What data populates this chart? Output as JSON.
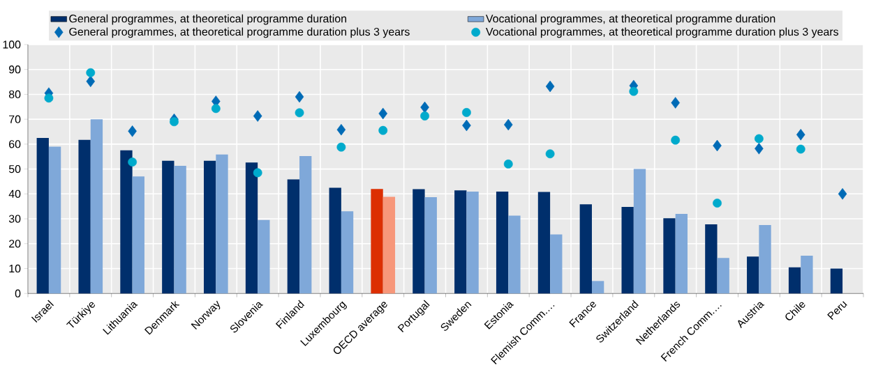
{
  "chart_data": {
    "type": "bar",
    "categories": [
      "Israel",
      "Türkiye",
      "Lithuania",
      "Denmark",
      "Norway",
      "Slovenia",
      "Finland",
      "Luxembourg",
      "OECD average",
      "Portugal",
      "Sweden",
      "Estonia",
      "Flemish Comm.…",
      "France",
      "Switzerland",
      "Netherlands",
      "French Comm.…",
      "Austria",
      "Chile",
      "Peru"
    ],
    "series": [
      {
        "name": "General programmes, at theoretical programme duration",
        "color": "#002f6c",
        "colors": [
          "#002f6c",
          "#002f6c",
          "#002f6c",
          "#002f6c",
          "#002f6c",
          "#002f6c",
          "#002f6c",
          "#002f6c",
          "#dc2f02",
          "#002f6c",
          "#002f6c",
          "#002f6c",
          "#002f6c",
          "#002f6c",
          "#002f6c",
          "#002f6c",
          "#002f6c",
          "#002f6c",
          "#002f6c",
          "#002f6c"
        ],
        "values": [
          62.5,
          61.7,
          57.5,
          53.3,
          53.3,
          52.6,
          45.8,
          42.5,
          42,
          41.9,
          41.4,
          40.9,
          40.8,
          35.8,
          34.8,
          30.2,
          27.8,
          14.8,
          10.5,
          10
        ]
      },
      {
        "name": "Vocational programmes, at theoretical programme duration",
        "color": "#7fa8d9",
        "colors": [
          "#7fa8d9",
          "#7fa8d9",
          "#7fa8d9",
          "#7fa8d9",
          "#7fa8d9",
          "#7fa8d9",
          "#7fa8d9",
          "#7fa8d9",
          "#f7977a",
          "#7fa8d9",
          "#7fa8d9",
          "#7fa8d9",
          "#7fa8d9",
          "#7fa8d9",
          "#7fa8d9",
          "#7fa8d9",
          "#7fa8d9",
          "#7fa8d9",
          "#7fa8d9",
          "#7fa8d9"
        ],
        "values": [
          59,
          70,
          47,
          51.3,
          55.8,
          29.5,
          55.2,
          33,
          38.8,
          38.7,
          40.9,
          31.3,
          23.7,
          5,
          50,
          32,
          14.3,
          27.5,
          15.2,
          null
        ]
      },
      {
        "name": "General programmes, at theoretical programme duration plus 3 years",
        "type": "scatter",
        "marker": "diamond",
        "color": "#006bb6",
        "values": [
          80.5,
          85.2,
          65.2,
          70,
          77.2,
          71.3,
          79,
          65.8,
          72.3,
          74.8,
          67.5,
          67.8,
          83.2,
          null,
          83.5,
          76.6,
          59.4,
          58.2,
          63.8,
          40
        ]
      },
      {
        "name": "Vocational programmes, at theoretical programme duration plus 3 years",
        "type": "scatter",
        "marker": "circle",
        "color": "#00aacc",
        "values": [
          78.5,
          88.7,
          52.8,
          69,
          74.3,
          48.5,
          72.6,
          58.8,
          65.5,
          71.3,
          72.7,
          52,
          56.1,
          null,
          81.2,
          61.6,
          36.3,
          62.2,
          58,
          null
        ]
      }
    ],
    "ylim": [
      0,
      100
    ],
    "yticks": [
      0,
      10,
      20,
      30,
      40,
      50,
      60,
      70,
      80,
      90,
      100
    ],
    "grid": true,
    "legend": "top"
  }
}
